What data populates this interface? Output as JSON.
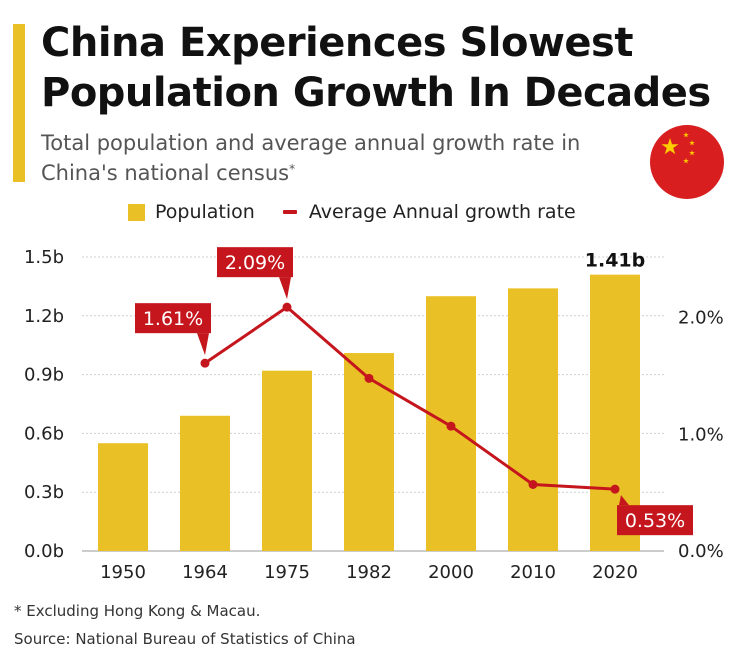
{
  "header": {
    "title": "China Experiences Slowest Population Growth In Decades",
    "subtitle": "Total population and average annual growth rate in China's national census",
    "subtitle_marker": "*"
  },
  "legend": {
    "population": "Population",
    "growth": "Average Annual growth rate"
  },
  "colors": {
    "bar": "#e9c127",
    "line": "#c4161c",
    "grid": "#cfcfcf",
    "text": "#1a1a1a"
  },
  "icons": {
    "flag": "china-flag-icon"
  },
  "chart_data": {
    "type": "bar",
    "categories": [
      "1950",
      "1964",
      "1975",
      "1982",
      "2000",
      "2010",
      "2020"
    ],
    "series": [
      {
        "name": "Population",
        "type": "bar",
        "axis": "left",
        "unit": "b",
        "values": [
          0.55,
          0.69,
          0.92,
          1.01,
          1.3,
          1.34,
          1.41
        ]
      },
      {
        "name": "Average Annual growth rate",
        "type": "line",
        "axis": "right",
        "unit": "%",
        "values": [
          null,
          1.61,
          2.09,
          1.48,
          1.07,
          0.57,
          0.53
        ]
      }
    ],
    "left_axis": {
      "ylim": [
        0,
        1.5
      ],
      "ticks": [
        "0.0b",
        "0.3b",
        "0.6b",
        "0.9b",
        "1.2b",
        "1.5b"
      ],
      "tick_values": [
        0,
        0.3,
        0.6,
        0.9,
        1.2,
        1.5
      ]
    },
    "right_axis": {
      "ylim": [
        0,
        2.52
      ],
      "ticks": [
        "0.0%",
        "1.0%",
        "2.0%"
      ],
      "tick_values": [
        0,
        1.0,
        2.0
      ]
    },
    "data_labels": [
      {
        "series": 0,
        "index": 6,
        "text": "1.41b"
      },
      {
        "series": 1,
        "index": 1,
        "text": "1.61%"
      },
      {
        "series": 1,
        "index": 2,
        "text": "2.09%"
      },
      {
        "series": 1,
        "index": 6,
        "text": "0.53%"
      }
    ],
    "grid": true,
    "legend_position": "top"
  },
  "footer": {
    "footnote": "* Excluding Hong Kong & Macau.",
    "source": "Source: National Bureau of Statistics of China"
  }
}
